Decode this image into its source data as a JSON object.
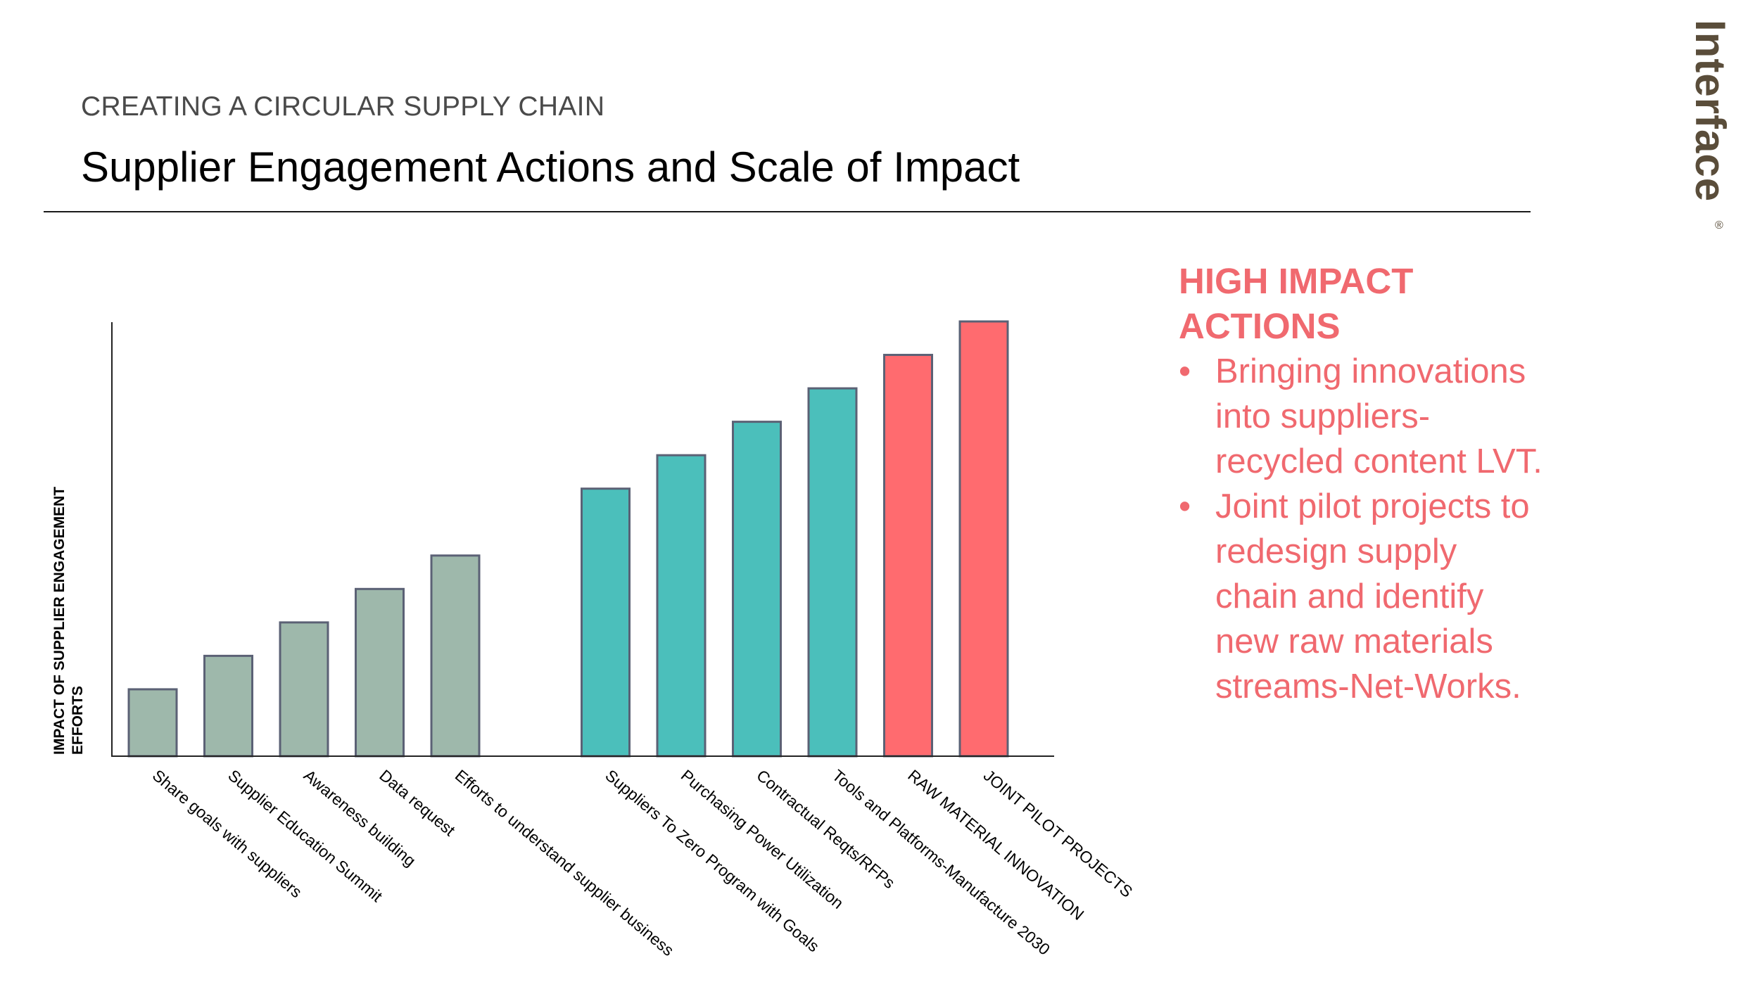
{
  "header": {
    "eyebrow": "CREATING A CIRCULAR SUPPLY CHAIN",
    "title": "Supplier Engagement Actions and Scale of Impact"
  },
  "brand": {
    "logo_text": "Interface",
    "registered_mark": "®",
    "color": "#5a4d3a"
  },
  "callout": {
    "heading": "HIGH IMPACT ACTIONS",
    "bullet_glyph": "•",
    "items": [
      "Bringing innovations into suppliers- recycled content LVT.",
      "Joint pilot projects to redesign supply chain and identify new raw materials streams-Net-Works."
    ],
    "color": "#f0696f"
  },
  "chart_data": {
    "type": "bar",
    "title": "",
    "xlabel": "",
    "ylabel": "IMPACT OF SUPPLIER ENGAGEMENT EFFORTS",
    "ylim": [
      0,
      13
    ],
    "grid": false,
    "legend": "none",
    "categories": [
      "Share goals with suppliers",
      "Supplier Education Summit",
      "Awareness building",
      "Data request",
      "Efforts to understand supplier business",
      "Suppliers To Zero Program with Goals",
      "Purchasing Power Utilization",
      "Contractual Reqts/RFPs",
      "Tools and Platforms-Manufacture 2030",
      "RAW MATERIAL INNOVATION",
      "JOINT PILOT PROJECTS"
    ],
    "values": [
      2,
      3,
      4,
      5,
      6,
      8,
      9,
      10,
      11,
      12,
      13
    ],
    "groups": [
      1,
      1,
      1,
      1,
      1,
      2,
      2,
      2,
      2,
      3,
      3
    ],
    "group_colors": {
      "1": "#9eb8ab",
      "2": "#4bbfbb",
      "3": "#ff6b6f"
    },
    "bar_outline_color": "#5b6175"
  }
}
